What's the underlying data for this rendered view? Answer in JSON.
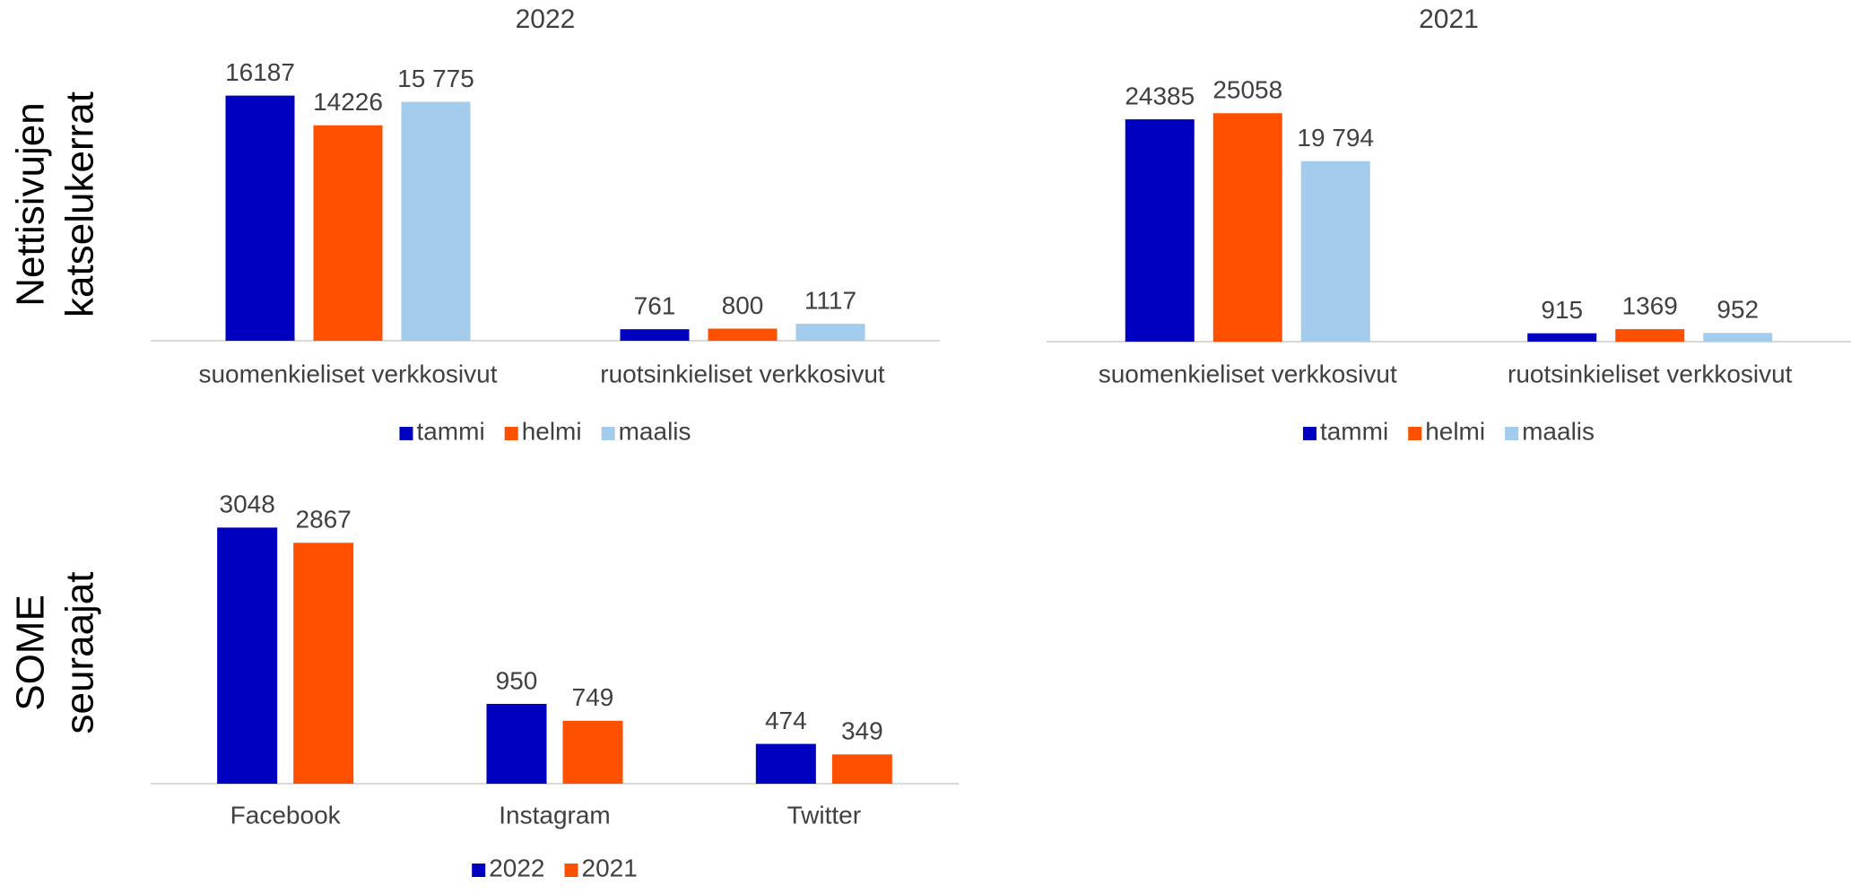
{
  "chart_data": [
    {
      "type": "bar",
      "title": "2022",
      "ylabel": [
        "Nettisivujen",
        "katselukerrat"
      ],
      "categories": [
        "suomenkieliset verkkosivut",
        "ruotsinkieliset verkkosivut"
      ],
      "series": [
        {
          "name": "tammi",
          "color": "#0000c0",
          "values": [
            16187,
            761
          ]
        },
        {
          "name": "helmi",
          "color": "#ff5000",
          "values": [
            14226,
            800
          ]
        },
        {
          "name": "maalis",
          "color": "#a3cbeb",
          "values": [
            15775,
            1117
          ],
          "value_labels": [
            "15 775",
            "1117"
          ]
        }
      ],
      "ylim": [
        0,
        18000
      ],
      "legend": "bottom"
    },
    {
      "type": "bar",
      "title": "2021",
      "categories": [
        "suomenkieliset verkkosivut",
        "ruotsinkieliset verkkosivut"
      ],
      "series": [
        {
          "name": "tammi",
          "color": "#0000c0",
          "values": [
            24385,
            915
          ]
        },
        {
          "name": "helmi",
          "color": "#ff5000",
          "values": [
            25058,
            1369
          ]
        },
        {
          "name": "maalis",
          "color": "#a3cbeb",
          "values": [
            19794,
            952
          ],
          "value_labels": [
            "19 794",
            "952"
          ]
        }
      ],
      "ylim": [
        0,
        30000
      ],
      "legend": "bottom"
    },
    {
      "type": "bar",
      "ylabel": [
        "SOME",
        "seuraajat"
      ],
      "categories": [
        "Facebook",
        "Instagram",
        "Twitter"
      ],
      "series": [
        {
          "name": "2022",
          "color": "#0000c0",
          "values": [
            3048,
            950,
            474
          ]
        },
        {
          "name": "2021",
          "color": "#ff5000",
          "values": [
            2867,
            749,
            349
          ]
        }
      ],
      "ylim": [
        0,
        3500
      ],
      "legend": "bottom"
    }
  ]
}
